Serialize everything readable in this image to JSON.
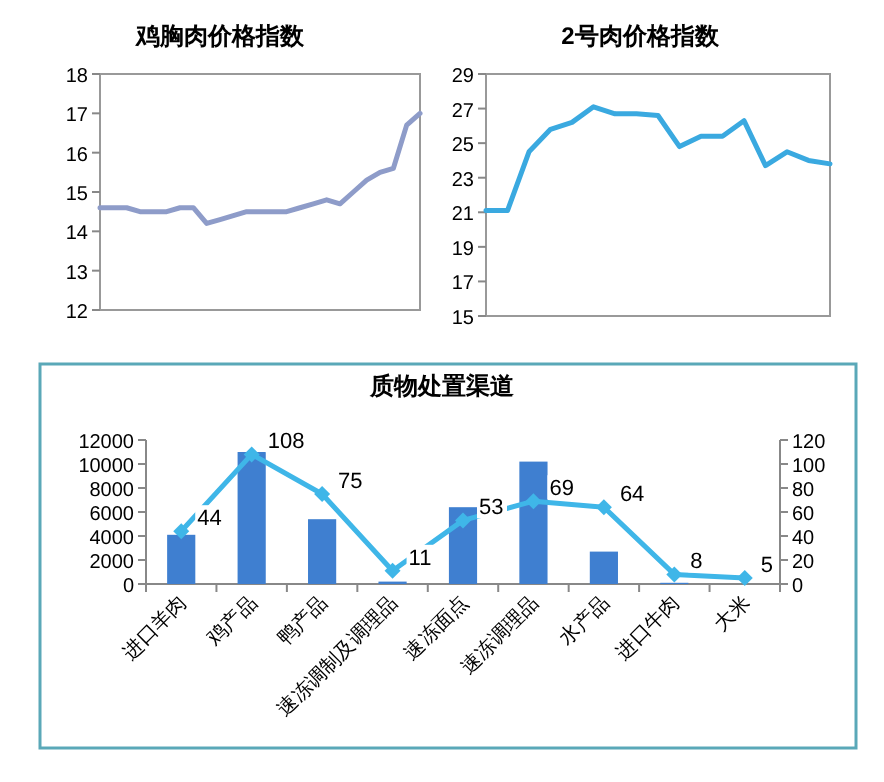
{
  "chart_data": [
    {
      "type": "line",
      "title": "鸡胸肉价格指数",
      "categories": [
        null,
        null,
        null,
        null,
        null,
        null,
        null,
        null,
        null,
        null,
        null,
        null,
        null,
        null,
        null,
        null,
        null,
        null,
        null,
        null,
        null,
        null,
        null,
        null,
        null
      ],
      "series": [
        {
          "color": "#8e9cc9",
          "values": [
            14.6,
            14.6,
            14.6,
            14.5,
            14.5,
            14.5,
            14.6,
            14.6,
            14.2,
            14.3,
            14.4,
            14.5,
            14.5,
            14.5,
            14.5,
            14.6,
            14.7,
            14.8,
            14.7,
            15.0,
            15.3,
            15.5,
            15.6,
            16.7,
            17.0
          ]
        }
      ],
      "ylim": [
        12,
        18
      ],
      "yticks": [
        12,
        13,
        14,
        15,
        16,
        17,
        18
      ]
    },
    {
      "type": "line",
      "title": "2号肉价格指数",
      "categories": [
        null,
        null,
        null,
        null,
        null,
        null,
        null,
        null,
        null,
        null,
        null,
        null,
        null,
        null,
        null,
        null,
        null
      ],
      "series": [
        {
          "color": "#3aa9e0",
          "values": [
            21.1,
            21.1,
            24.5,
            25.8,
            26.2,
            27.1,
            26.7,
            26.7,
            26.6,
            24.8,
            25.4,
            25.4,
            26.3,
            23.7,
            24.5,
            24.0,
            23.8
          ]
        }
      ],
      "ylim": [
        15,
        29
      ],
      "yticks": [
        15,
        17,
        19,
        21,
        23,
        25,
        27,
        29
      ]
    },
    {
      "type": "bar",
      "title": "质物处置渠道",
      "categories": [
        "进口羊肉",
        "鸡产品",
        "鸭产品",
        "速冻调制及调理品",
        "速冻面点",
        "速冻调理品",
        "水产品",
        "进口牛肉",
        "大米"
      ],
      "series": [
        {
          "type": "bar",
          "color": "#3f7fd0",
          "values": [
            4100,
            11000,
            5400,
            200,
            6400,
            10200,
            2700,
            100,
            0
          ]
        },
        {
          "type": "line",
          "axis": "y2",
          "color": "#3fb6e8",
          "marker": "diamond",
          "values": [
            44,
            108,
            75,
            11,
            53,
            69,
            64,
            8,
            5
          ],
          "value_labels": [
            "44",
            "108",
            "75",
            "11",
            "53",
            "69",
            "64",
            "8",
            "5"
          ]
        }
      ],
      "ylim": [
        0,
        12000
      ],
      "yticks": [
        0,
        2000,
        4000,
        6000,
        8000,
        10000,
        12000
      ],
      "y2lim": [
        0,
        120
      ],
      "y2ticks": [
        0,
        20,
        40,
        60,
        80,
        100,
        120
      ]
    }
  ]
}
